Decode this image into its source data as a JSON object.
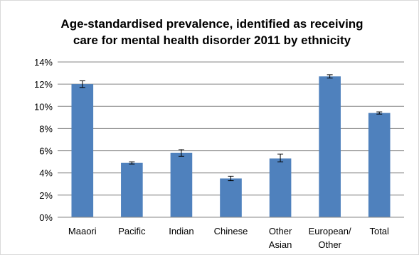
{
  "chart_data": {
    "type": "bar",
    "title_lines": [
      "Age-standardised prevalence, identified as receiving",
      "care for mental health disorder 2011 by ethnicity"
    ],
    "categories": [
      [
        "Maaori"
      ],
      [
        "Pacific"
      ],
      [
        "Indian"
      ],
      [
        "Chinese"
      ],
      [
        "Other",
        "Asian"
      ],
      [
        "European/",
        "Other"
      ],
      [
        "Total"
      ]
    ],
    "series": [
      {
        "values": [
          12.0,
          4.9,
          5.8,
          3.5,
          5.3,
          12.7,
          9.4
        ],
        "error_low": [
          11.7,
          4.8,
          5.5,
          3.3,
          5.0,
          12.55,
          9.3
        ],
        "error_high": [
          12.3,
          5.0,
          6.1,
          3.7,
          5.7,
          12.85,
          9.5
        ]
      }
    ],
    "ylim": [
      0,
      14
    ],
    "yticks": [
      0,
      2,
      4,
      6,
      8,
      10,
      12,
      14
    ],
    "ytick_labels": [
      "0%",
      "2%",
      "4%",
      "6%",
      "8%",
      "10%",
      "12%",
      "14%"
    ],
    "xlabel": "",
    "ylabel": "",
    "grid": true,
    "bar_color": "#4f81bd",
    "grid_color": "#868686",
    "legend": "none"
  }
}
